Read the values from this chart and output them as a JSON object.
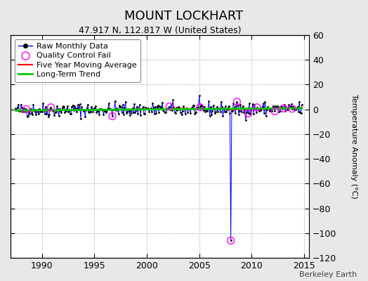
{
  "title": "MOUNT LOCKHART",
  "subtitle": "47.917 N, 112.817 W (United States)",
  "ylabel_right": "Temperature Anomaly (°C)",
  "xlim": [
    1987.0,
    2015.5
  ],
  "ylim": [
    -120,
    60
  ],
  "yticks_right": [
    -120,
    -100,
    -80,
    -60,
    -40,
    -20,
    0,
    20,
    40,
    60
  ],
  "xticks": [
    1990,
    1995,
    2000,
    2005,
    2010,
    2015
  ],
  "bg_color": "#e8e8e8",
  "plot_bg_color": "#ffffff",
  "grid_color": "#b0b0b0",
  "seed": 42,
  "start_year": 1987.5,
  "end_year": 2014.8,
  "n_months": 327,
  "outlier_x": 2008.0,
  "outlier_y": -106.0,
  "raw_line_color": "#0000ff",
  "raw_dot_color": "#000000",
  "qc_fail_color": "#ff00ff",
  "moving_avg_color": "#ff0000",
  "trend_color": "#00cc00",
  "noise_std": 2.8,
  "watermark": "Berkeley Earth",
  "title_fontsize": 13,
  "subtitle_fontsize": 9,
  "tick_fontsize": 9,
  "legend_fontsize": 8
}
